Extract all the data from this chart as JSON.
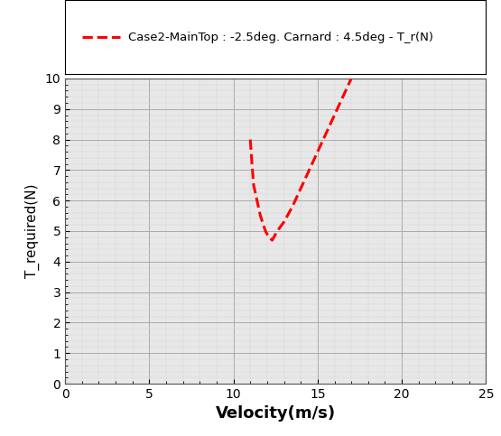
{
  "x_data": [
    11.0,
    11.1,
    11.2,
    11.4,
    11.6,
    11.9,
    12.1,
    12.3,
    12.6,
    13.0,
    13.5,
    14.0,
    14.5,
    15.0,
    15.5,
    16.0,
    16.5,
    17.0
  ],
  "y_data": [
    8.0,
    7.2,
    6.5,
    6.0,
    5.5,
    5.0,
    4.8,
    4.7,
    5.0,
    5.3,
    5.8,
    6.4,
    7.0,
    7.6,
    8.2,
    8.8,
    9.4,
    10.0
  ],
  "line_color": "#FF0000",
  "legend_label": "Case2-MainTop : -2.5deg. Carnard : 4.5deg - T_r(N)",
  "xlabel": "Velocity(m/s)",
  "ylabel": "T_required(N)",
  "xlim": [
    0,
    25
  ],
  "ylim": [
    0,
    10
  ],
  "xticks": [
    0,
    5,
    10,
    15,
    20,
    25
  ],
  "yticks": [
    0,
    1,
    2,
    3,
    4,
    5,
    6,
    7,
    8,
    9,
    10
  ],
  "grid_major_color": "#aaaaaa",
  "grid_minor_color": "#d5d5d5",
  "plot_bg_color": "#e8e8e8",
  "fig_bg_color": "#ffffff",
  "fig_width": 5.55,
  "fig_height": 4.83,
  "dpi": 100
}
